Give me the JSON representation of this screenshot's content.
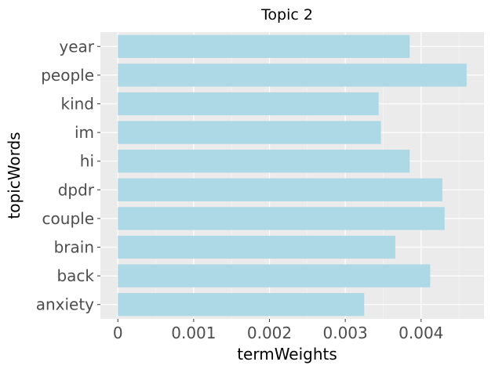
{
  "chart_data": {
    "type": "bar",
    "orientation": "horizontal",
    "title": "Topic 2",
    "xlabel": "termWeights",
    "ylabel": "topicWords",
    "categories": [
      "year",
      "people",
      "kind",
      "im",
      "hi",
      "dpdr",
      "couple",
      "brain",
      "back",
      "anxiety"
    ],
    "values": [
      0.00385,
      0.0046,
      0.00344,
      0.00347,
      0.00385,
      0.00428,
      0.00431,
      0.00366,
      0.00412,
      0.00325
    ],
    "xlim": [
      -0.00023,
      0.00483
    ],
    "xticks": [
      0,
      0.001,
      0.002,
      0.003,
      0.004
    ],
    "xtick_labels": [
      "0",
      "0.001",
      "0.002",
      "0.003",
      "0.004"
    ],
    "grid": true,
    "legend": "none",
    "colors": {
      "bar": "#add8e6",
      "panel": "#ebebeb",
      "grid_major": "#ffffff",
      "grid_minor": "#f5f5f5",
      "tick_text": "#4d4d4d",
      "tick_mark": "#333333"
    }
  }
}
